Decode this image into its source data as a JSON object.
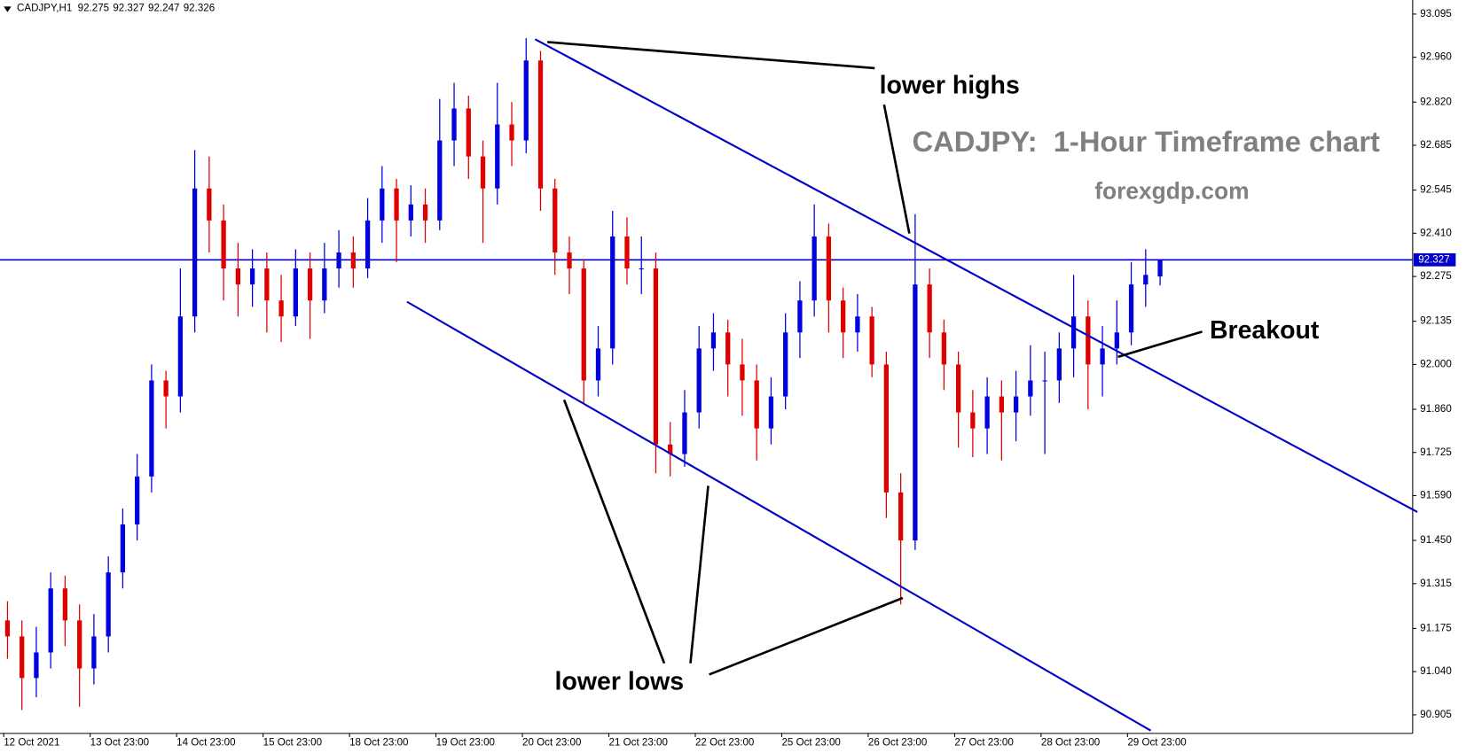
{
  "chart_data": {
    "type": "candlestick",
    "title": "CADJPY,H1",
    "chart_title": "CADJPY:  1-Hour Timeframe chart",
    "watermark": "forexgdp.com",
    "annotations": [
      "lower highs",
      "Breakout",
      "lower lows"
    ],
    "up_color": "#0000e0",
    "down_color": "#e00000",
    "line_color": "#0000c8",
    "current_price": 92.327,
    "categories": [
      "12 Oct 2021",
      null,
      null,
      null,
      null,
      null,
      "13 Oct 23:00",
      null,
      null,
      null,
      null,
      null,
      "14 Oct 23:00",
      null,
      null,
      null,
      null,
      null,
      "15 Oct 23:00",
      null,
      null,
      null,
      null,
      null,
      "18 Oct 23:00",
      null,
      null,
      null,
      null,
      null,
      "19 Oct 23:00",
      null,
      null,
      null,
      null,
      null,
      "20 Oct 23:00",
      null,
      null,
      null,
      null,
      null,
      "21 Oct 23:00",
      null,
      null,
      null,
      null,
      null,
      "22 Oct 23:00",
      null,
      null,
      null,
      null,
      null,
      "25 Oct 23:00",
      null,
      null,
      null,
      null,
      null,
      "26 Oct 23:00",
      null,
      null,
      null,
      null,
      null,
      "27 Oct 23:00",
      null,
      null,
      null,
      null,
      null,
      "28 Oct 23:00",
      null,
      null,
      null,
      null,
      null,
      "29 Oct 23:00",
      null,
      null
    ],
    "open": [
      91.2,
      91.15,
      91.02,
      91.1,
      91.3,
      91.2,
      91.05,
      91.15,
      91.35,
      91.5,
      91.65,
      91.95,
      91.9,
      92.15,
      92.55,
      92.45,
      92.3,
      92.25,
      92.3,
      92.2,
      92.15,
      92.3,
      92.2,
      92.3,
      92.35,
      92.3,
      92.45,
      92.55,
      92.45,
      92.5,
      92.45,
      92.7,
      92.8,
      92.65,
      92.55,
      92.75,
      92.7,
      92.95,
      92.55,
      92.35,
      92.3,
      91.95,
      92.05,
      92.4,
      92.3,
      92.3,
      91.75,
      91.72,
      91.85,
      92.05,
      92.1,
      92.0,
      91.95,
      91.8,
      91.9,
      92.1,
      92.2,
      92.4,
      92.2,
      92.1,
      92.15,
      92.0,
      91.6,
      91.45,
      92.25,
      92.1,
      92.0,
      91.85,
      91.8,
      91.9,
      91.85,
      91.9,
      91.95,
      91.95,
      92.05,
      92.15,
      92.0,
      92.05,
      92.1,
      92.25,
      92.275
    ],
    "high": [
      91.26,
      91.2,
      91.18,
      91.35,
      91.34,
      91.25,
      91.22,
      91.4,
      91.55,
      91.72,
      92.0,
      91.98,
      92.3,
      92.67,
      92.65,
      92.5,
      92.38,
      92.36,
      92.35,
      92.28,
      92.36,
      92.35,
      92.38,
      92.42,
      92.4,
      92.52,
      92.62,
      92.58,
      92.56,
      92.55,
      92.83,
      92.88,
      92.84,
      92.7,
      92.88,
      92.82,
      93.02,
      92.98,
      92.58,
      92.4,
      92.33,
      92.12,
      92.48,
      92.46,
      92.4,
      92.35,
      91.82,
      91.92,
      92.12,
      92.16,
      92.14,
      92.08,
      92.0,
      91.96,
      92.16,
      92.26,
      92.5,
      92.44,
      92.24,
      92.22,
      92.18,
      92.04,
      91.66,
      92.47,
      92.3,
      92.14,
      92.04,
      91.92,
      91.96,
      91.95,
      91.98,
      92.06,
      92.04,
      92.1,
      92.28,
      92.2,
      92.12,
      92.2,
      92.32,
      92.36,
      92.327
    ],
    "low": [
      91.08,
      90.92,
      90.96,
      91.05,
      91.12,
      90.93,
      91.0,
      91.1,
      91.3,
      91.45,
      91.6,
      91.8,
      91.85,
      92.1,
      92.35,
      92.2,
      92.15,
      92.18,
      92.1,
      92.07,
      92.12,
      92.08,
      92.16,
      92.24,
      92.24,
      92.27,
      92.38,
      92.32,
      92.4,
      92.38,
      92.42,
      92.62,
      92.58,
      92.38,
      92.5,
      92.62,
      92.66,
      92.48,
      92.28,
      92.22,
      91.88,
      91.9,
      92.0,
      92.25,
      92.22,
      91.66,
      91.65,
      91.68,
      91.8,
      91.98,
      91.9,
      91.84,
      91.7,
      91.75,
      91.86,
      92.02,
      92.15,
      92.1,
      92.02,
      92.04,
      91.96,
      91.52,
      91.25,
      91.42,
      92.02,
      91.92,
      91.74,
      91.71,
      91.72,
      91.7,
      91.76,
      91.84,
      91.72,
      91.88,
      91.96,
      91.86,
      91.9,
      92.0,
      92.06,
      92.18,
      92.247
    ],
    "close": [
      91.15,
      91.02,
      91.1,
      91.3,
      91.2,
      91.05,
      91.15,
      91.35,
      91.5,
      91.65,
      91.95,
      91.9,
      92.15,
      92.55,
      92.45,
      92.3,
      92.25,
      92.3,
      92.2,
      92.15,
      92.3,
      92.2,
      92.3,
      92.35,
      92.3,
      92.45,
      92.55,
      92.45,
      92.5,
      92.45,
      92.7,
      92.8,
      92.65,
      92.55,
      92.75,
      92.7,
      92.95,
      92.55,
      92.35,
      92.3,
      91.95,
      92.05,
      92.4,
      92.3,
      92.3,
      91.75,
      91.72,
      91.85,
      92.05,
      92.1,
      92.0,
      91.95,
      91.8,
      91.9,
      92.1,
      92.2,
      92.4,
      92.2,
      92.1,
      92.15,
      92.0,
      91.6,
      91.45,
      92.25,
      92.1,
      92.0,
      91.85,
      91.8,
      91.9,
      91.85,
      91.9,
      91.95,
      91.95,
      92.05,
      92.15,
      92.0,
      92.05,
      92.1,
      92.25,
      92.28,
      92.326
    ],
    "ylim": [
      90.847,
      93.139
    ],
    "yticks": [
      93.095,
      {
        "value": 92.96,
        "label": "92.960"
      },
      {
        "value": 92.82,
        "label": "92.820"
      },
      92.685,
      92.545,
      {
        "value": 92.41,
        "label": "92.410"
      },
      92.275,
      92.135,
      {
        "value": 92,
        "label": "92.000"
      },
      {
        "value": 91.86,
        "label": "91.860"
      },
      91.725,
      {
        "value": 91.59,
        "label": "91.590"
      },
      {
        "value": 91.45,
        "label": "91.450"
      },
      91.315,
      91.175,
      {
        "value": 91.04,
        "label": "91.040"
      },
      90.905
    ]
  }
}
